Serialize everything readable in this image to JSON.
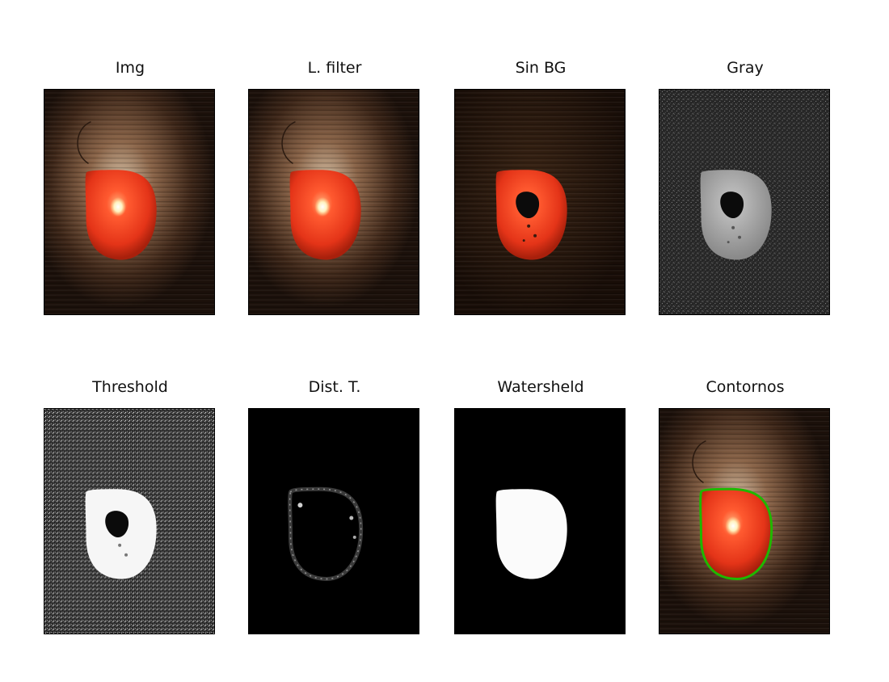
{
  "panels": [
    {
      "title": "Img"
    },
    {
      "title": "L. filter"
    },
    {
      "title": "Sin BG"
    },
    {
      "title": "Gray"
    },
    {
      "title": "Threshold"
    },
    {
      "title": "Dist. T."
    },
    {
      "title": "Watersheld"
    },
    {
      "title": "Contornos"
    }
  ],
  "colors": {
    "wood_dark": "#1a0f09",
    "wood_mid": "#4a3020",
    "tomato_red": "#e8361c",
    "highlight": "#fff6d0",
    "contour_green": "#1fb800"
  }
}
